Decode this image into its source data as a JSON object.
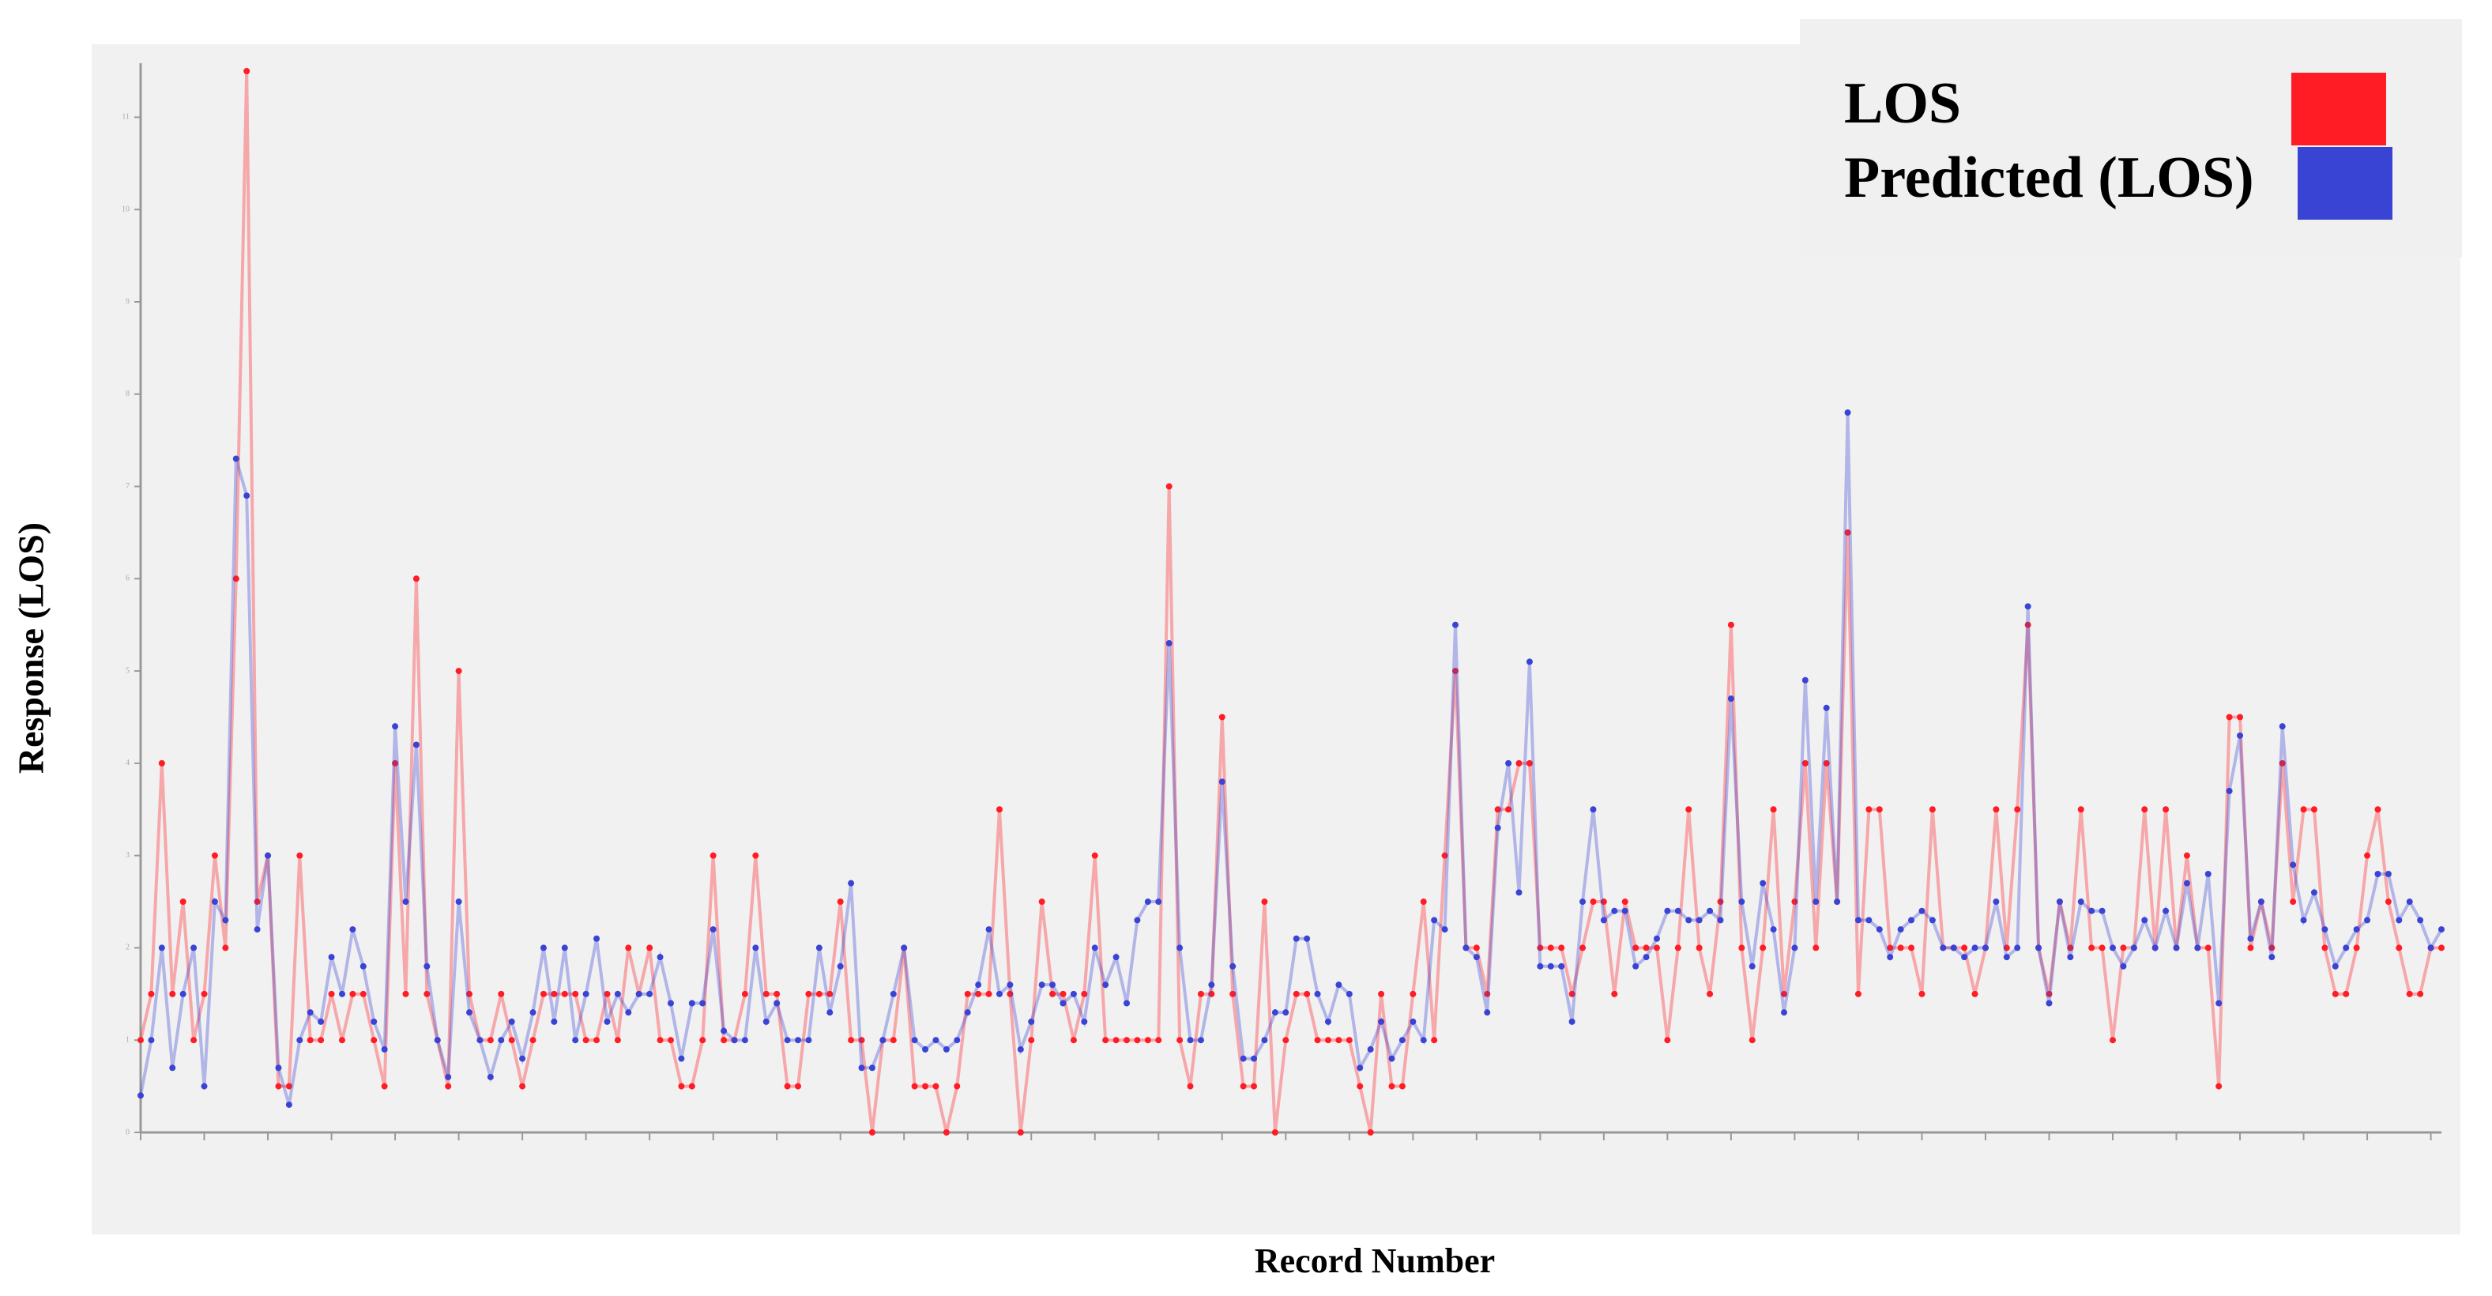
{
  "chart_data": {
    "type": "line",
    "ylabel": "Response (LOS)",
    "xlabel": "Record Number",
    "ylim": [
      0,
      11.5
    ],
    "yticks": [
      0,
      1,
      2,
      3,
      4,
      5,
      6,
      7,
      8,
      9,
      10,
      11
    ],
    "legend": "upper right",
    "series": [
      {
        "name": "LOS",
        "color": "#ff1c24",
        "values": [
          1,
          1.5,
          4,
          1.5,
          2.5,
          1,
          1.5,
          3,
          2,
          6,
          11.5,
          2.5,
          3,
          0.5,
          0.5,
          3,
          1,
          1,
          1.5,
          1,
          1.5,
          1.5,
          1,
          0.5,
          4,
          1.5,
          6,
          1.5,
          1,
          0.5,
          5,
          1.5,
          1,
          1,
          1.5,
          1,
          0.5,
          1,
          1.5,
          1.5,
          1.5,
          1.5,
          1,
          1,
          1.5,
          1,
          2,
          1.5,
          2,
          1,
          1,
          0.5,
          0.5,
          1,
          3,
          1,
          1,
          1.5,
          3,
          1.5,
          1.5,
          0.5,
          0.5,
          1.5,
          1.5,
          1.5,
          2.5,
          1,
          1,
          0,
          1,
          1,
          2,
          0.5,
          0.5,
          0.5,
          0,
          0.5,
          1.5,
          1.5,
          1.5,
          3.5,
          1.5,
          0,
          1,
          2.5,
          1.5,
          1.5,
          1,
          1.5,
          3,
          1,
          1,
          1,
          1,
          1,
          1,
          7,
          1,
          0.5,
          1.5,
          1.5,
          4.5,
          1.5,
          0.5,
          0.5,
          2.5,
          0,
          1,
          1.5,
          1.5,
          1,
          1,
          1,
          1,
          0.5,
          0,
          1.5,
          0.5,
          0.5,
          1.5,
          2.5,
          1,
          3,
          5,
          2,
          2,
          1.5,
          3.5,
          3.5,
          4,
          4,
          2,
          2,
          2,
          1.5,
          2,
          2.5,
          2.5,
          1.5,
          2.5,
          2,
          2,
          2,
          1,
          2,
          3.5,
          2,
          1.5,
          2.5,
          5.5,
          2,
          1,
          2,
          3.5,
          1.5,
          2.5,
          4,
          2,
          4,
          2.5,
          6.5,
          1.5,
          3.5,
          3.5,
          2,
          2,
          2,
          1.5,
          3.5,
          2,
          2,
          2,
          1.5,
          2,
          3.5,
          2,
          3.5,
          5.5,
          2,
          1.5,
          2.5,
          2,
          3.5,
          2,
          2,
          1,
          2,
          2,
          3.5,
          2,
          3.5,
          2,
          3,
          2,
          2,
          0.5,
          4.5,
          4.5,
          2,
          2.5,
          2,
          4,
          2.5,
          3.5,
          3.5,
          2,
          1.5,
          1.5,
          2,
          3,
          3.5,
          2.5,
          2,
          1.5,
          1.5,
          2,
          2
        ]
      },
      {
        "name": "Predicted (LOS)",
        "color": "#3a44d4",
        "values": [
          0.4,
          1,
          2,
          0.7,
          1.5,
          2,
          0.5,
          2.5,
          2.3,
          7.3,
          6.9,
          2.2,
          3,
          0.7,
          0.3,
          1,
          1.3,
          1.2,
          1.9,
          1.5,
          2.2,
          1.8,
          1.2,
          0.9,
          4.4,
          2.5,
          4.2,
          1.8,
          1,
          0.6,
          2.5,
          1.3,
          1,
          0.6,
          1,
          1.2,
          0.8,
          1.3,
          2,
          1.2,
          2,
          1,
          1.5,
          2.1,
          1.2,
          1.5,
          1.3,
          1.5,
          1.5,
          1.9,
          1.4,
          0.8,
          1.4,
          1.4,
          2.2,
          1.1,
          1,
          1,
          2,
          1.2,
          1.4,
          1,
          1,
          1,
          2,
          1.3,
          1.8,
          2.7,
          0.7,
          0.7,
          1,
          1.5,
          2,
          1,
          0.9,
          1,
          0.9,
          1,
          1.3,
          1.6,
          2.2,
          1.5,
          1.6,
          0.9,
          1.2,
          1.6,
          1.6,
          1.4,
          1.5,
          1.2,
          2,
          1.6,
          1.9,
          1.4,
          2.3,
          2.5,
          2.5,
          5.3,
          2,
          1,
          1,
          1.6,
          3.8,
          1.8,
          0.8,
          0.8,
          1,
          1.3,
          1.3,
          2.1,
          2.1,
          1.5,
          1.2,
          1.6,
          1.5,
          0.7,
          0.9,
          1.2,
          0.8,
          1,
          1.2,
          1,
          2.3,
          2.2,
          5.5,
          2,
          1.9,
          1.3,
          3.3,
          4,
          2.6,
          5.1,
          1.8,
          1.8,
          1.8,
          1.2,
          2.5,
          3.5,
          2.3,
          2.4,
          2.4,
          1.8,
          1.9,
          2.1,
          2.4,
          2.4,
          2.3,
          2.3,
          2.4,
          2.3,
          4.7,
          2.5,
          1.8,
          2.7,
          2.2,
          1.3,
          2,
          4.9,
          2.5,
          4.6,
          2.5,
          7.8,
          2.3,
          2.3,
          2.2,
          1.9,
          2.2,
          2.3,
          2.4,
          2.3,
          2,
          2,
          1.9,
          2,
          2,
          2.5,
          1.9,
          2,
          5.7,
          2,
          1.4,
          2.5,
          1.9,
          2.5,
          2.4,
          2.4,
          2,
          1.8,
          2,
          2.3,
          2,
          2.4,
          2,
          2.7,
          2,
          2.8,
          1.4,
          3.7,
          4.3,
          2.1,
          2.5,
          1.9,
          4.4,
          2.9,
          2.3,
          2.6,
          2.2,
          1.8,
          2,
          2.2,
          2.3,
          2.8,
          2.8,
          2.3,
          2.5,
          2.3,
          2,
          2.2
        ]
      }
    ]
  }
}
